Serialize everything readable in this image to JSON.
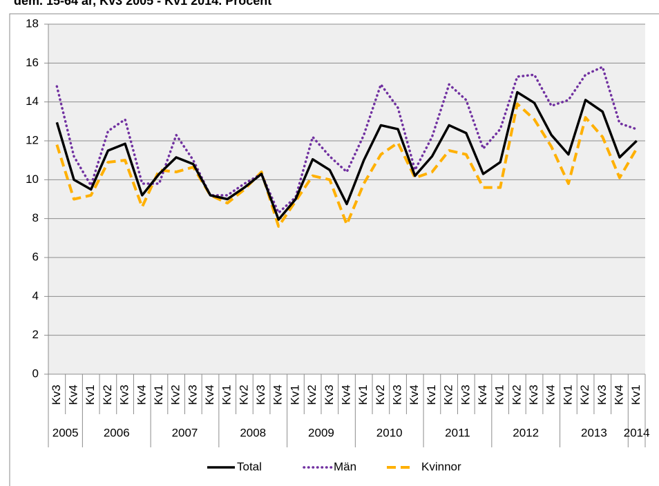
{
  "chart_data": {
    "type": "line",
    "title": "dem. 15-64 år, Kv3 2005 - Kv1 2014. Procent",
    "categories": [
      "Kv3",
      "Kv4",
      "Kv1",
      "Kv2",
      "Kv3",
      "Kv4",
      "Kv1",
      "Kv2",
      "Kv3",
      "Kv4",
      "Kv1",
      "Kv2",
      "Kv3",
      "Kv4",
      "Kv1",
      "Kv2",
      "Kv3",
      "Kv4",
      "Kv1",
      "Kv2",
      "Kv3",
      "Kv4",
      "Kv1",
      "Kv2",
      "Kv3",
      "Kv4",
      "Kv1",
      "Kv2",
      "Kv3",
      "Kv4",
      "Kv1",
      "Kv2",
      "Kv3",
      "Kv4",
      "Kv1"
    ],
    "category_groups": [
      {
        "label": "2005",
        "size": 2
      },
      {
        "label": "2006",
        "size": 4
      },
      {
        "label": "2007",
        "size": 4
      },
      {
        "label": "2008",
        "size": 4
      },
      {
        "label": "2009",
        "size": 4
      },
      {
        "label": "2010",
        "size": 4
      },
      {
        "label": "2011",
        "size": 4
      },
      {
        "label": "2012",
        "size": 4
      },
      {
        "label": "2013",
        "size": 4
      },
      {
        "label": "2014",
        "size": 1
      }
    ],
    "series": [
      {
        "name": "Total",
        "color": "#000000",
        "style": "solid",
        "values": [
          12.95,
          10.0,
          9.5,
          11.5,
          11.85,
          9.2,
          10.3,
          11.15,
          10.8,
          9.2,
          9.0,
          9.6,
          10.3,
          7.95,
          9.0,
          11.05,
          10.5,
          8.75,
          11.0,
          12.8,
          12.6,
          10.2,
          11.2,
          12.8,
          12.4,
          10.3,
          10.9,
          14.5,
          13.95,
          12.3,
          11.3,
          14.1,
          13.5,
          11.15,
          12.0
        ]
      },
      {
        "name": "Män",
        "color": "#7030a0",
        "style": "dotted",
        "values": [
          14.8,
          11.2,
          9.7,
          12.5,
          13.1,
          9.8,
          9.8,
          12.3,
          11.0,
          9.2,
          9.2,
          9.8,
          10.3,
          8.3,
          9.1,
          12.2,
          11.2,
          10.4,
          12.3,
          14.9,
          13.7,
          10.5,
          12.2,
          14.9,
          14.1,
          11.6,
          12.6,
          15.3,
          15.4,
          13.8,
          14.1,
          15.4,
          15.8,
          12.9,
          12.6
        ]
      },
      {
        "name": "Kvinnor",
        "color": "#ffb000",
        "style": "dashed",
        "values": [
          11.8,
          9.0,
          9.2,
          10.9,
          11.0,
          8.6,
          10.5,
          10.4,
          10.65,
          9.2,
          8.8,
          9.5,
          10.4,
          7.6,
          8.9,
          10.2,
          10.0,
          7.7,
          9.8,
          11.3,
          11.9,
          10.1,
          10.4,
          11.5,
          11.3,
          9.6,
          9.6,
          13.9,
          13.1,
          11.7,
          9.8,
          13.2,
          12.2,
          10.1,
          11.6
        ]
      }
    ],
    "ylim": [
      0,
      18
    ],
    "yticks": [
      0,
      2,
      4,
      6,
      8,
      10,
      12,
      14,
      16,
      18
    ],
    "grid": true,
    "legend": "bottom"
  }
}
